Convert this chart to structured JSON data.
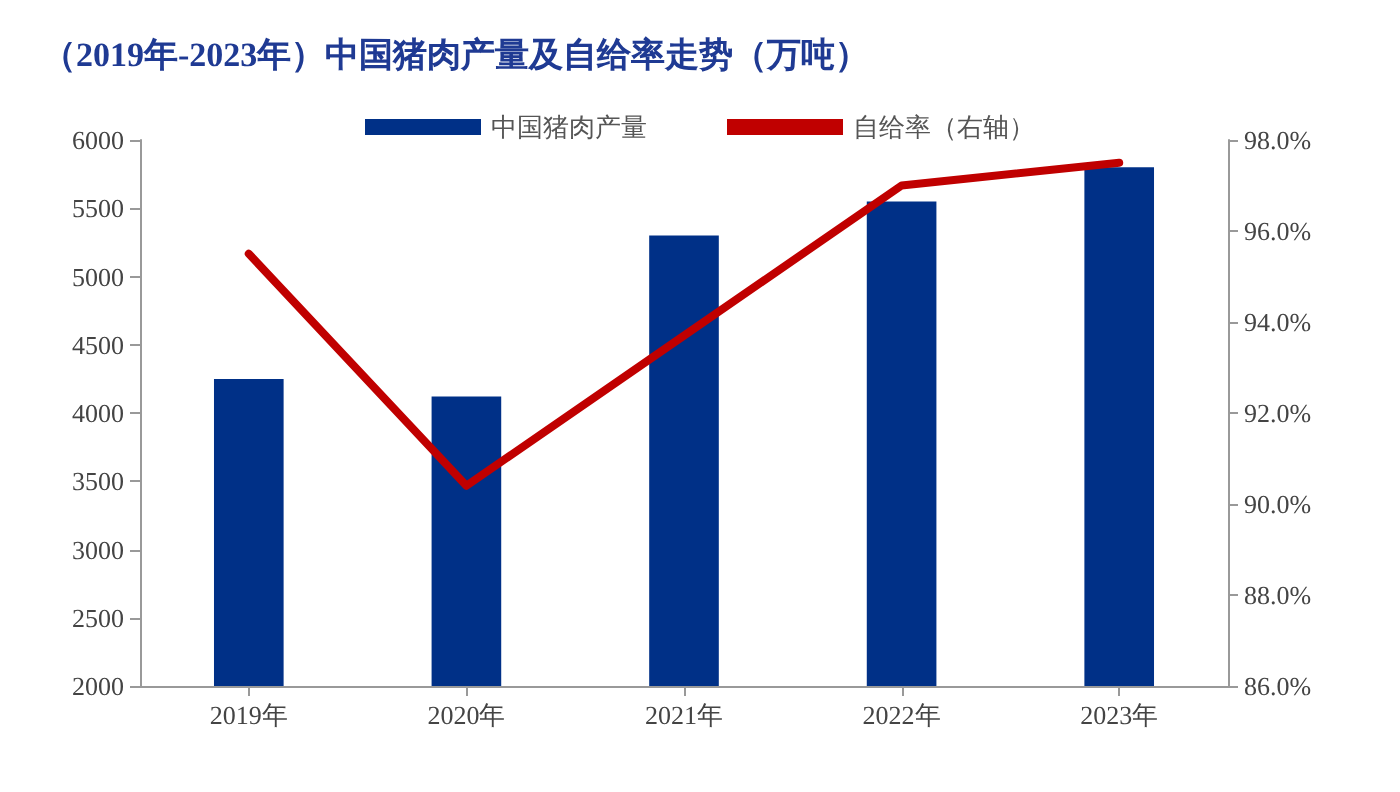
{
  "chart_data": {
    "type": "bar",
    "title": "（2019年-2023年）中国猪肉产量及自给率走势（万吨）",
    "categories": [
      "2019年",
      "2020年",
      "2021年",
      "2022年",
      "2023年"
    ],
    "series": [
      {
        "name": "中国猪肉产量",
        "color": "#003087",
        "values": [
          4250,
          4120,
          5300,
          5550,
          5800
        ]
      },
      {
        "name": "自给率（右轴）",
        "type": "line",
        "axis": "y2",
        "color": "#c00000",
        "values": [
          95.5,
          90.4,
          93.7,
          97.0,
          97.5
        ]
      }
    ],
    "ylim": [
      2000,
      6000
    ],
    "yticks": [
      2000,
      2500,
      3000,
      3500,
      4000,
      4500,
      5000,
      5500,
      6000
    ],
    "y2lim": [
      86,
      98
    ],
    "y2ticks": [
      {
        "value": 86,
        "label": "86.0%"
      },
      {
        "value": 88,
        "label": "88.0%"
      },
      {
        "value": 90,
        "label": "90.0%"
      },
      {
        "value": 92,
        "label": "92.0%"
      },
      {
        "value": 94,
        "label": "94.0%"
      },
      {
        "value": 96,
        "label": "96.0%"
      },
      {
        "value": 98,
        "label": "98.0%"
      }
    ],
    "legend": "top",
    "grid": false,
    "marker": "none",
    "line_style": "solid"
  }
}
